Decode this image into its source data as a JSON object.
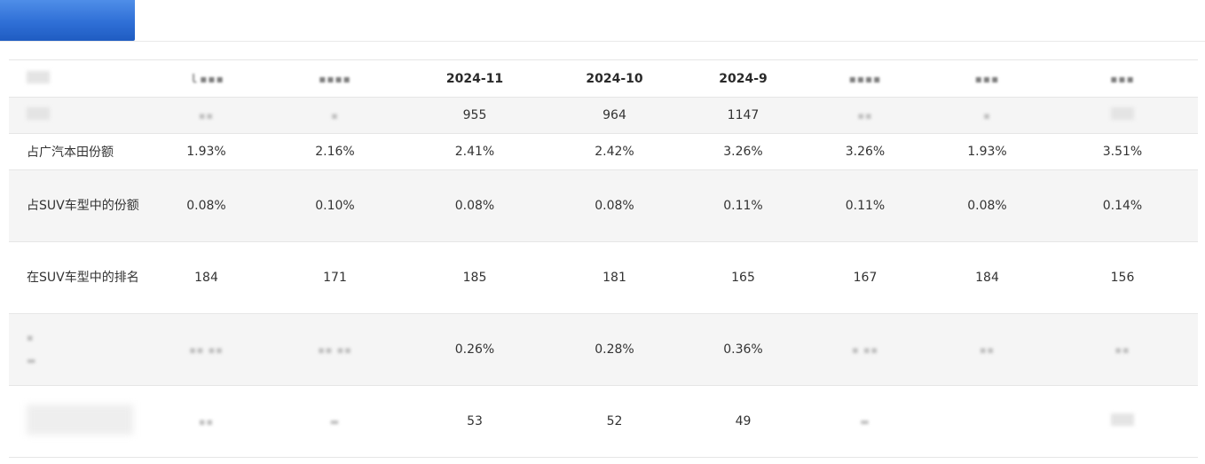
{
  "table": {
    "header": [
      "",
      "",
      "",
      "2024-11",
      "2024-10",
      "2024-9",
      "",
      "",
      ""
    ],
    "rows": [
      [
        "",
        "",
        "",
        "955",
        "964",
        "1147",
        "",
        "",
        ""
      ],
      [
        "占广汽本田份额",
        "1.93%",
        "2.16%",
        "2.41%",
        "2.42%",
        "3.26%",
        "3.26%",
        "1.93%",
        "3.51%"
      ],
      [
        "占SUV车型中的份额",
        "0.08%",
        "0.10%",
        "0.08%",
        "0.08%",
        "0.11%",
        "0.11%",
        "0.08%",
        "0.14%"
      ],
      [
        "在SUV车型中的排名",
        "184",
        "171",
        "185",
        "181",
        "165",
        "167",
        "184",
        "156"
      ],
      [
        "",
        "",
        "",
        "0.26%",
        "0.28%",
        "0.36%",
        "",
        "",
        ""
      ],
      [
        "",
        "",
        "",
        "53",
        "52",
        "49",
        "",
        "",
        ""
      ]
    ]
  },
  "colors": {
    "banner": "#2f6fd6",
    "row_alt_bg": "#f5f5f5",
    "border": "#e6e6e6",
    "text": "#333333"
  }
}
